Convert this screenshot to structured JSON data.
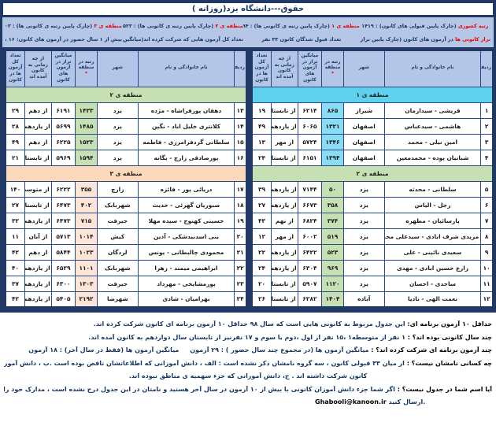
{
  "title": "حقوق---دانشگاه یزد(روزانه )",
  "colors": {
    "frame_navy": "#1f3864",
    "band_periwinkle": "#b6c6e7",
    "header_periwinkle": "#b4c6e7",
    "accent_red": "#e80000",
    "region1_cyan": "#5fd0ee",
    "region2_green": "#c6e0b4",
    "region3_peach": "#fce4d6",
    "text_navy": "#17365d"
  },
  "stats": [
    {
      "label": "رتبه کشوری",
      "rest": "(چارک پایین قبولی های کانون) : ۱۴۱۹"
    },
    {
      "label": "منطقه ی ۱",
      "rest": "(چارک پایین رتبه ی کانونی ها) : ۱۳۹۴"
    },
    {
      "label": "منطقه ی ۲",
      "rest": "(چارک پایین رتبه ی کانونی ها) : ۱۵۲۳"
    },
    {
      "label": "منطقه ی ۳",
      "rest": "(چارک پایین رتبه ی کانونی ها) : ۱۴۰۳"
    },
    {
      "label": "تراز کانونی ها",
      "rest": "در آزمون های کانون (چارک پایین تراز) : ۵۸۴۴"
    },
    {
      "label": "",
      "rest": "تعداد قبول شدگان کانون ۳۳ نفر"
    },
    {
      "label": "",
      "rest": "تعداد کل آزمون هایی که شرکت کرده اند(میانگین): ۲۹ آزمون"
    },
    {
      "label": "",
      "rest": "بیش از ۱ سال حضور در آزمون های کانون: ۱۶ نفر"
    }
  ],
  "table": {
    "headers": [
      "ردیف",
      "نام خانوادگی و نام",
      "شهر",
      "رتبه در منطقه",
      "میانگین تراز در آزمون های کانون",
      "از چه زمانی به کانون آمده اند",
      "تعداد کل آزمون ها در کانون"
    ],
    "rank_asterisk": "*",
    "right": {
      "sections": [
        {
          "title": "منطقه ی ۱",
          "region": "r1",
          "rows": [
            [
              "۱",
              "قریشی - سیدارمان",
              "شیراز",
              "۸۶۵",
              "۶۲۱۴",
              "از تابستان",
              "۱۹"
            ],
            [
              "۲",
              "هاشمی - سیدعباس",
              "اصفهان",
              "۱۳۲۱",
              "۶۰۶۵",
              "از یازدهم",
              "۴۹"
            ],
            [
              "۳",
              "امین نیلی - محمد",
              "اصفهان",
              "۱۳۴۶",
              "۵۷۲۴",
              "از مهر",
              "۱۳"
            ],
            [
              "۴",
              "شبانیان پوده - محمدمعین",
              "اصفهان",
              "۱۳۹۴",
              "۶۱۵۱",
              "از تابستان",
              "۲۴"
            ]
          ]
        },
        {
          "title": "منطقه ی ۲",
          "region": "r2",
          "rows": [
            [
              "۵",
              "سلطانی - محدثه",
              "یزد",
              "۵۰",
              "۷۱۴۴",
              "از یازدهم",
              "۳۹"
            ],
            [
              "۶",
              "رجل - الیاس",
              "یزد",
              "۳۵۸",
              "۶۶۷۳",
              "از یازدهم",
              "۲۷"
            ],
            [
              "۷",
              "پارسائیان - مطهره",
              "یزد",
              "۳۷۴",
              "۶۸۲۴",
              "از نهم",
              "۴۳"
            ],
            [
              "۸",
              "مزیدی شرف ابادی - سیدعلی محمد",
              "یزد",
              "۵۱۹",
              "۶۰۰۲",
              "از مهر",
              "۱۲"
            ],
            [
              "۹",
              "سعیدی نائینی - علی",
              "یزد",
              "۵۲۳",
              "۶۴۲۲",
              "از یازدهم",
              "۲۲"
            ],
            [
              "۱۰",
              "زارع حسین ابادی - مهدی",
              "یزد",
              "۹۶۹",
              "۶۳۰۴",
              "از یازدهم",
              "۲۴"
            ],
            [
              "۱۱",
              "ساجدی - احسان",
              "یزد",
              "۱۱۲۰",
              "۵۹۰۷",
              "از تابستان",
              "۲۰"
            ],
            [
              "۱۲",
              "نعمت الهی - نادیا",
              "آباده",
              "۱۴۰۴",
              "۶۲۸۲",
              "از تابستان",
              "۲۶"
            ]
          ]
        }
      ]
    },
    "left": {
      "sections": [
        {
          "title": "منطقه ی ۲",
          "region": "r2",
          "rows": [
            [
              "۱۳",
              "دهقان پورفراشاه - مژده",
              "یزد",
              "۱۴۳۳",
              "۶۱۹۱",
              "از دهم",
              "۲۹"
            ],
            [
              "۱۴",
              "کلانتری خلیل اباد - نگین",
              "یزد",
              "۱۴۸۵",
              "۵۶۹۹",
              "از یازدهم",
              "۲۸"
            ],
            [
              "۱۵",
              "سلطانی گردفرامرزی - فاطمه",
              "یزد",
              "۱۵۲۳",
              "۶۲۲۵",
              "از دهم",
              "۴۹"
            ],
            [
              "۱۶",
              "پورصادقی زارچ - یگانه",
              "یزد",
              "۱۵۹۴",
              "۵۹۶۹",
              "از تابستان",
              "۲۱"
            ]
          ]
        },
        {
          "title": "منطقه ی ۳",
          "region": "r3",
          "rows": [
            [
              "۱۷",
              "دریائی پور - فائزه",
              "زارچ",
              "۳۵۵",
              "۶۲۲۲",
              "از متوسطه۱",
              "۱۴۰"
            ],
            [
              "۱۸",
              "صبوریان گهرئی - حدیث",
              "شهربابک",
              "۴۰۲",
              "۶۴۷۳",
              "از تابستان",
              "۲۷"
            ],
            [
              "۱۹",
              "حسینی کهنوج - سیده مهلا",
              "جیرفت",
              "۷۱۵",
              "۶۴۷۳",
              "از یازدهم",
              "۳۲"
            ],
            [
              "۲۰",
              "بنی اسدبیدشکی - آذین",
              "کیش",
              "۱۰۱۴",
              "۵۷۱۳",
              "از آبان",
              "۱۱"
            ],
            [
              "۲۱",
              "محمودی چالبطانی - یونس",
              "لردگان",
              "۱۰۲۳",
              "۵۸۴۴",
              "از دهم",
              "۴۲"
            ],
            [
              "۲۲",
              "ابراهیمی میمند - زهرا",
              "شهربابک",
              "۱۱۰۱",
              "۶۵۲۹",
              "از یازدهم",
              "۴۰"
            ],
            [
              "۲۳",
              "پورمشایخی - مهرداد",
              "جیرفت",
              "۱۳۰۳",
              "۶۳۰۰",
              "از یازدهم",
              "۳۷"
            ],
            [
              "۲۴",
              "بهرامیان - شادی",
              "شهرضا",
              "۲۱۹۲",
              "۵۴۰۵",
              "از یازدهم",
              "۴۲"
            ]
          ]
        }
      ]
    }
  },
  "notes": [
    {
      "lead": "حداقل ۱۰ آزمون برنامه ای:",
      "body": "این جدول مربوط به کانونی هایی است که سال ۹۸ حداقل ۱۰ آزمون برنامه ای کانون شرکت کرده اند."
    },
    {
      "lead": "چند سال کانونی بوده اند؟ :",
      "body": "۱ نفر از متوسطه۱ ،۱۵ نفر از اول ،دوم یا سوم و ۱۷ نفرنیز از تابستان سال دوازدهم به کانون آمده اند."
    },
    {
      "lead": "چند آزمون برنامه ای شرکت کرده اند؟ :",
      "body": "میانگین آزمون ها (در مجموع چند سال حضور ) : ۲۹ آزمون     میانگین آزمون ها (فقط در سال آخر) : ۱۸ آزمون"
    },
    {
      "lead": "چه کسانی نامشان نیست؟ :",
      "body": "از میان ۳۳ قبولی کانون ، سه گروه نامشان ذکر نشده است : الف ، دانش آموزانی که اطلاعاتشان ناقص بوده است .ب ، دانش آموزانی که در کمتر از ۱۰ آزمون برنامه ای"
    },
    {
      "lead": "",
      "align": "center",
      "body": "کانون شرکت داشته اند . ج، دانش آموزانی که جزء سهمیه ی مناطق نبوده اند."
    },
    {
      "lead": "آیا اسم شما در جدول نیست؟ :",
      "body": "اگر شما جزء دانش آموزان کانونی با بیش از ۱۰ آزمون در سال آخر هستید و نامتان در این جدول درج نشده است ، مدارک خود را از طریق ای میل به نشانی"
    },
    {
      "lead": "",
      "align": "email-line",
      "email": "Ghabooli@kanoon.ir",
      "body": " ارسال کنید."
    }
  ]
}
